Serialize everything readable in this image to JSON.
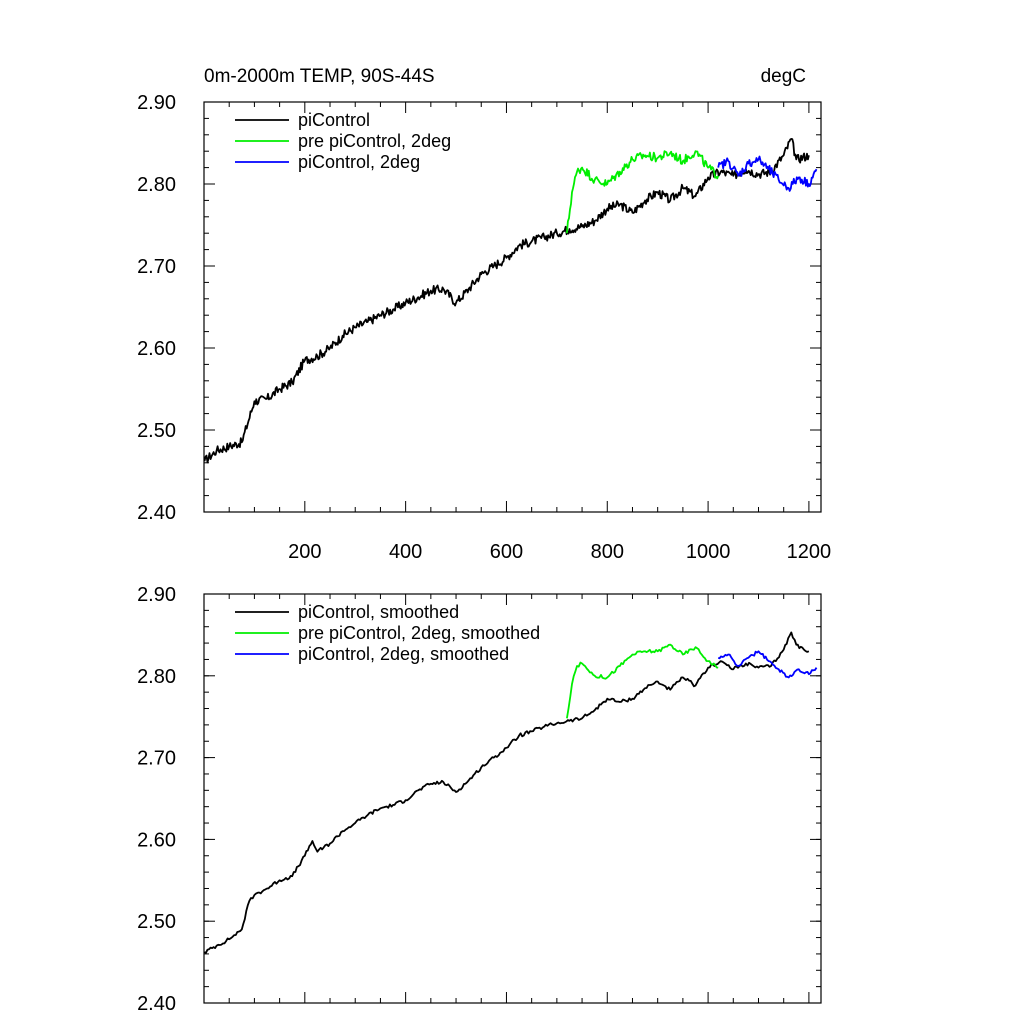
{
  "figure": {
    "title_left": "0m-2000m TEMP, 90S-44S",
    "title_right": "degC"
  },
  "chart_data": [
    {
      "type": "line",
      "id": "raw",
      "title": "0m-2000m TEMP, 90S-44S",
      "units": "degC",
      "xlim": [
        0,
        1224
      ],
      "ylim": [
        2.4,
        2.9
      ],
      "xticks": [
        200,
        400,
        600,
        800,
        1000,
        1200
      ],
      "xtick_labels": [
        "200",
        "400",
        "600",
        "800",
        "1000",
        "1200"
      ],
      "yticks": [
        2.4,
        2.5,
        2.6,
        2.7,
        2.8,
        2.9
      ],
      "ytick_labels": [
        "2.40",
        "2.50",
        "2.60",
        "2.70",
        "2.80",
        "2.90"
      ],
      "legend": "top-left",
      "series": [
        {
          "name": "piControl",
          "color": "#000000",
          "x": [
            1,
            25,
            50,
            75,
            100,
            125,
            150,
            175,
            200,
            225,
            250,
            275,
            300,
            325,
            350,
            375,
            400,
            425,
            450,
            475,
            500,
            525,
            550,
            575,
            600,
            625,
            650,
            675,
            700,
            725,
            750,
            775,
            800,
            825,
            850,
            875,
            900,
            925,
            950,
            975,
            1000,
            1025,
            1050,
            1075,
            1100,
            1125,
            1150,
            1165,
            1175,
            1200
          ],
          "y": [
            2.462,
            2.475,
            2.48,
            2.485,
            2.535,
            2.538,
            2.55,
            2.558,
            2.585,
            2.59,
            2.6,
            2.615,
            2.625,
            2.632,
            2.64,
            2.647,
            2.655,
            2.662,
            2.67,
            2.672,
            2.655,
            2.672,
            2.69,
            2.7,
            2.71,
            2.725,
            2.73,
            2.735,
            2.74,
            2.745,
            2.748,
            2.755,
            2.77,
            2.775,
            2.765,
            2.78,
            2.79,
            2.78,
            2.795,
            2.785,
            2.808,
            2.815,
            2.81,
            2.818,
            2.812,
            2.815,
            2.835,
            2.855,
            2.83,
            2.835
          ]
        },
        {
          "name": "pre piControl, 2deg",
          "color": "#00ee00",
          "x": [
            720,
            730,
            740,
            750,
            775,
            800,
            825,
            850,
            875,
            900,
            925,
            950,
            975,
            1000,
            1020
          ],
          "y": [
            2.74,
            2.79,
            2.815,
            2.82,
            2.805,
            2.8,
            2.815,
            2.83,
            2.835,
            2.832,
            2.838,
            2.828,
            2.84,
            2.82,
            2.81
          ]
        },
        {
          "name": "piControl, 2deg",
          "color": "#0000ff",
          "x": [
            1020,
            1040,
            1060,
            1080,
            1100,
            1120,
            1140,
            1160,
            1180,
            1200,
            1215
          ],
          "y": [
            2.82,
            2.828,
            2.81,
            2.825,
            2.83,
            2.818,
            2.805,
            2.795,
            2.808,
            2.8,
            2.818
          ]
        }
      ]
    },
    {
      "type": "line",
      "id": "smoothed",
      "title": "",
      "xlim": [
        0,
        1224
      ],
      "ylim": [
        2.4,
        2.9
      ],
      "xticks": [
        200,
        400,
        600,
        800,
        1000,
        1200
      ],
      "yticks": [
        2.4,
        2.5,
        2.6,
        2.7,
        2.8,
        2.9
      ],
      "ytick_labels": [
        "2.40",
        "2.50",
        "2.60",
        "2.70",
        "2.80",
        "2.90"
      ],
      "legend": "top-left",
      "series": [
        {
          "name": "piControl, smoothed",
          "color": "#000000",
          "x": [
            1,
            25,
            50,
            60,
            75,
            90,
            100,
            125,
            150,
            175,
            200,
            215,
            225,
            250,
            275,
            300,
            325,
            350,
            375,
            400,
            425,
            450,
            475,
            500,
            525,
            550,
            575,
            600,
            625,
            650,
            675,
            700,
            725,
            750,
            775,
            800,
            825,
            850,
            875,
            900,
            925,
            950,
            975,
            1000,
            1025,
            1050,
            1075,
            1100,
            1125,
            1150,
            1165,
            1175,
            1190,
            1200
          ],
          "y": [
            2.462,
            2.47,
            2.478,
            2.483,
            2.49,
            2.525,
            2.532,
            2.54,
            2.55,
            2.555,
            2.58,
            2.598,
            2.585,
            2.595,
            2.61,
            2.62,
            2.63,
            2.638,
            2.642,
            2.648,
            2.66,
            2.668,
            2.67,
            2.658,
            2.672,
            2.688,
            2.7,
            2.712,
            2.727,
            2.732,
            2.738,
            2.742,
            2.745,
            2.748,
            2.758,
            2.772,
            2.768,
            2.772,
            2.785,
            2.793,
            2.783,
            2.798,
            2.788,
            2.81,
            2.818,
            2.808,
            2.815,
            2.81,
            2.812,
            2.832,
            2.853,
            2.838,
            2.832,
            2.83
          ]
        },
        {
          "name": "pre piControl, 2deg, smoothed",
          "color": "#00ee00",
          "x": [
            720,
            730,
            740,
            750,
            775,
            800,
            825,
            850,
            875,
            900,
            925,
            950,
            975,
            1000,
            1020
          ],
          "y": [
            2.748,
            2.79,
            2.812,
            2.815,
            2.8,
            2.798,
            2.812,
            2.826,
            2.83,
            2.83,
            2.838,
            2.826,
            2.835,
            2.818,
            2.81
          ]
        },
        {
          "name": "piControl, 2deg, smoothed",
          "color": "#0000ff",
          "x": [
            1020,
            1040,
            1060,
            1080,
            1100,
            1120,
            1140,
            1160,
            1180,
            1200,
            1215
          ],
          "y": [
            2.822,
            2.826,
            2.812,
            2.822,
            2.83,
            2.818,
            2.808,
            2.798,
            2.808,
            2.802,
            2.81
          ]
        }
      ]
    }
  ]
}
